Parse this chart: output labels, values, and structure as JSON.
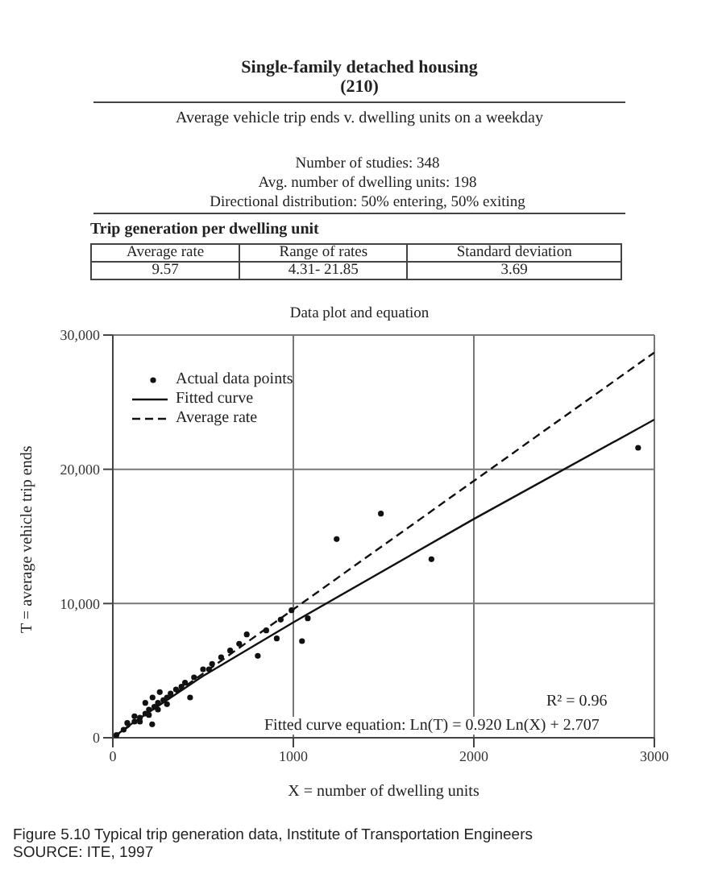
{
  "chart_data": {
    "type": "scatter",
    "title": "Single-family detached housing",
    "subtitle": "Average vehicle trip ends v. dwelling units on a weekday",
    "xlabel": "X = number of dwelling units",
    "ylabel": "T = average vehicle trip ends",
    "annotations": [
      "(210)",
      "Number of studies: 348",
      "Avg. number of dwelling units: 198",
      "Directional distribution: 50% entering, 50% exiting",
      "Trip generation per dwelling unit",
      "Average rate",
      "Range of rates",
      "Standard deviation",
      "9.57",
      "4.31- 21.85",
      "3.69",
      "Data plot and equation",
      "R² = 0.96",
      "Fitted curve equation: Ln(T) = 0.920 Ln(X) + 2.707",
      "Figure 5.10 Typical trip generation data, Institute of Transportation Engineers",
      "SOURCE: ITE, 1997"
    ],
    "xlim": [
      0,
      3000
    ],
    "xticks": [
      0,
      1000,
      2000,
      3000
    ],
    "ylim": [
      0,
      30000
    ],
    "yticks": [
      0,
      {
        "value": 10000,
        "label": "10,000"
      },
      {
        "value": 20000,
        "label": "20,000"
      },
      {
        "value": 30000,
        "label": "30,000"
      }
    ],
    "grid": true,
    "legend": "top left",
    "series": [
      {
        "name": "Actual data points",
        "marker": "circle",
        "color": "#111111",
        "x": [
          20,
          60,
          120,
          150,
          180,
          200,
          230,
          250,
          280,
          300,
          320,
          350,
          380,
          400,
          450,
          500,
          550,
          600,
          650,
          700,
          850,
          930,
          150,
          200,
          250,
          300,
          220,
          260,
          180,
          120,
          80,
          218,
          428,
          533,
          742,
          803,
          908,
          1048,
          990,
          1080,
          1240,
          1485,
          1765,
          2910
        ],
        "values": [
          200,
          600,
          1200,
          1500,
          1800,
          2100,
          2300,
          2600,
          2800,
          3000,
          3300,
          3600,
          3800,
          4100,
          4500,
          5100,
          5500,
          6000,
          6500,
          7000,
          8000,
          8800,
          1200,
          1700,
          2100,
          2500,
          3000,
          3400,
          2600,
          1600,
          1100,
          1000,
          3000,
          5100,
          7700,
          6100,
          7400,
          7200,
          9500,
          8900,
          14800,
          16700,
          13300,
          21600
        ]
      },
      {
        "name": "Fitted curve",
        "type": "line",
        "line_style": "solid",
        "color": "#111111",
        "x": [
          10,
          100,
          500,
          1000,
          2000,
          3000
        ],
        "values": [
          100,
          1000,
          4600,
          8600,
          16300,
          23700
        ]
      },
      {
        "name": "Average rate",
        "type": "line",
        "line_style": "dashed",
        "color": "#111111",
        "x": [
          0,
          3000
        ],
        "values": [
          0,
          28700
        ]
      }
    ]
  }
}
